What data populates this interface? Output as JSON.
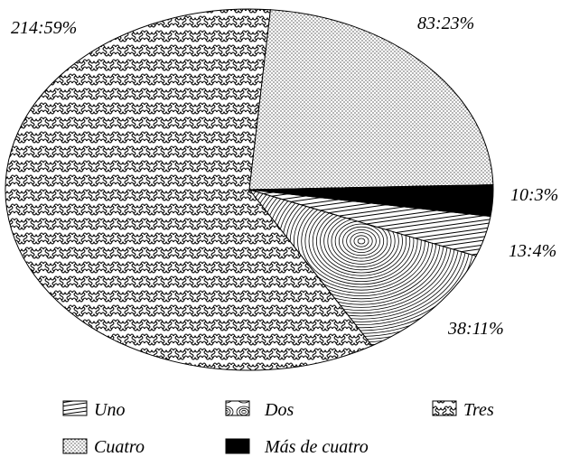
{
  "chart_data": {
    "type": "pie",
    "title": "",
    "slices": [
      {
        "name": "Uno",
        "value": 13,
        "percent": 4,
        "label": "13:4%",
        "pattern": "diagonal-lines"
      },
      {
        "name": "Dos",
        "value": 38,
        "percent": 11,
        "label": "38:11%",
        "pattern": "spiral"
      },
      {
        "name": "Tres",
        "value": 214,
        "percent": 59,
        "label": "214:59%",
        "pattern": "tessellation"
      },
      {
        "name": "Cuatro",
        "value": 83,
        "percent": 23,
        "label": "83:23%",
        "pattern": "dots"
      },
      {
        "name": "Más de cuatro",
        "value": 10,
        "percent": 3,
        "label": "10:3%",
        "pattern": "solid-black"
      }
    ],
    "legend": {
      "placement": "bottom",
      "items": [
        "Uno",
        "Dos",
        "Tres",
        "Cuatro",
        "Más de cuatro"
      ]
    },
    "colors": {
      "stroke": "#000000",
      "background": "#ffffff"
    }
  }
}
